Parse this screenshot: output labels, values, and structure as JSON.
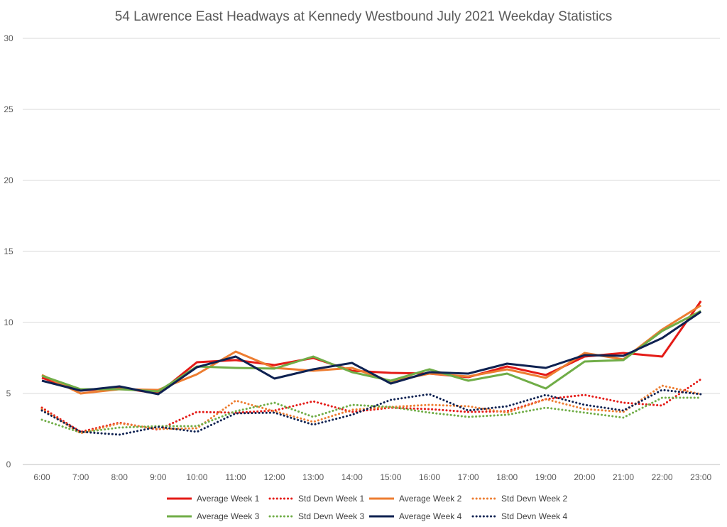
{
  "chart_data": {
    "type": "line",
    "title": "54 Lawrence East Headways at Kennedy Westbound July 2021 Weekday Statistics",
    "xlabel": "",
    "ylabel": "",
    "ylim": [
      0,
      30
    ],
    "yticks": [
      0,
      5,
      10,
      15,
      20,
      25,
      30
    ],
    "grid": true,
    "legend_position": "bottom",
    "categories": [
      "6:00",
      "7:00",
      "8:00",
      "9:00",
      "10:00",
      "11:00",
      "12:00",
      "13:00",
      "14:00",
      "15:00",
      "16:00",
      "17:00",
      "18:00",
      "19:00",
      "20:00",
      "21:00",
      "22:00",
      "23:00"
    ],
    "series": [
      {
        "name": "Average Week 1",
        "color": "#e41b17",
        "dash": "solid",
        "values": [
          6.1,
          5.2,
          5.4,
          5.0,
          7.2,
          7.35,
          7.0,
          7.5,
          6.6,
          6.45,
          6.4,
          6.15,
          6.9,
          6.3,
          7.6,
          7.85,
          7.6,
          11.5
        ]
      },
      {
        "name": "Std Devn Week 1",
        "color": "#e41b17",
        "dash": "dot",
        "values": [
          4.0,
          2.3,
          2.95,
          2.45,
          3.7,
          3.65,
          3.8,
          4.45,
          3.7,
          4.0,
          3.9,
          3.7,
          3.75,
          4.6,
          4.9,
          4.35,
          4.15,
          6.0
        ]
      },
      {
        "name": "Average Week 2",
        "color": "#ed7d31",
        "dash": "solid",
        "values": [
          6.3,
          5.0,
          5.3,
          5.25,
          6.35,
          7.95,
          6.8,
          6.6,
          6.8,
          5.85,
          6.4,
          6.2,
          6.7,
          6.1,
          7.85,
          7.4,
          9.5,
          11.2
        ]
      },
      {
        "name": "Std Devn Week 2",
        "color": "#ed7d31",
        "dash": "dot",
        "values": [
          3.9,
          2.2,
          2.9,
          2.5,
          2.55,
          4.5,
          3.75,
          3.0,
          3.85,
          4.05,
          4.2,
          4.1,
          3.65,
          4.6,
          3.9,
          3.7,
          5.55,
          4.95
        ]
      },
      {
        "name": "Average Week 3",
        "color": "#70ad47",
        "dash": "solid",
        "values": [
          6.25,
          5.3,
          5.3,
          5.15,
          6.9,
          6.8,
          6.75,
          7.6,
          6.5,
          5.9,
          6.7,
          5.9,
          6.4,
          5.35,
          7.25,
          7.35,
          9.4,
          10.8
        ]
      },
      {
        "name": "Std Devn Week 3",
        "color": "#70ad47",
        "dash": "dot",
        "values": [
          3.15,
          2.25,
          2.6,
          2.7,
          2.7,
          3.75,
          4.35,
          3.35,
          4.2,
          4.05,
          3.65,
          3.35,
          3.5,
          4.0,
          3.65,
          3.3,
          4.7,
          4.7
        ]
      },
      {
        "name": "Average Week 4",
        "color": "#0e2151",
        "dash": "solid",
        "values": [
          5.9,
          5.2,
          5.5,
          4.95,
          6.85,
          7.6,
          6.05,
          6.7,
          7.15,
          5.7,
          6.5,
          6.4,
          7.1,
          6.8,
          7.7,
          7.65,
          8.9,
          10.75
        ]
      },
      {
        "name": "Std Devn Week 4",
        "color": "#0e2151",
        "dash": "dot",
        "values": [
          3.8,
          2.3,
          2.1,
          2.65,
          2.3,
          3.6,
          3.65,
          2.8,
          3.5,
          4.55,
          4.95,
          3.8,
          4.1,
          4.9,
          4.2,
          3.8,
          5.25,
          4.95
        ]
      }
    ]
  }
}
